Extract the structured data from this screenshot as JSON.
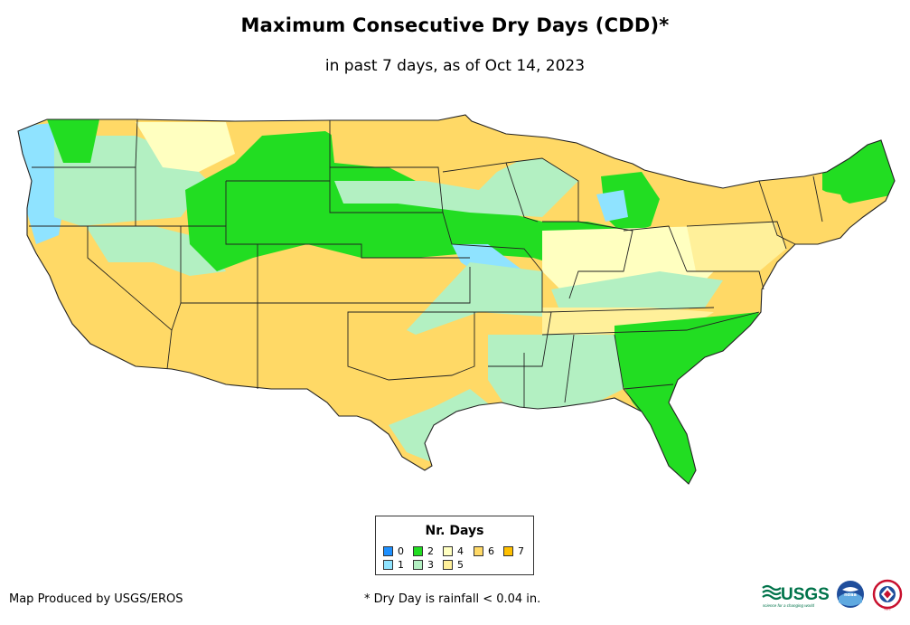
{
  "title": "Maximum Consecutive Dry Days (CDD)*",
  "subtitle": "in past 7 days, as of Oct 14, 2023",
  "legend": {
    "title": "Nr. Days",
    "items": [
      {
        "label": "0",
        "color": "#1e90ff"
      },
      {
        "label": "1",
        "color": "#8fe3ff"
      },
      {
        "label": "2",
        "color": "#22dd22"
      },
      {
        "label": "3",
        "color": "#b3f0c2"
      },
      {
        "label": "4",
        "color": "#ffffc0"
      },
      {
        "label": "5",
        "color": "#fff09a"
      },
      {
        "label": "6",
        "color": "#ffd966"
      },
      {
        "label": "7",
        "color": "#ffc000"
      }
    ]
  },
  "credit": "Map Produced by USGS/EROS",
  "footnote": "* Dry Day is rainfall < 0.04 in.",
  "logos": {
    "usgs": "USGS",
    "usgs_tagline": "science for a changing world",
    "noaa": "noaa",
    "nws": "NWS"
  },
  "colors": {
    "ocean": "#ffffff",
    "border": "#222222"
  }
}
